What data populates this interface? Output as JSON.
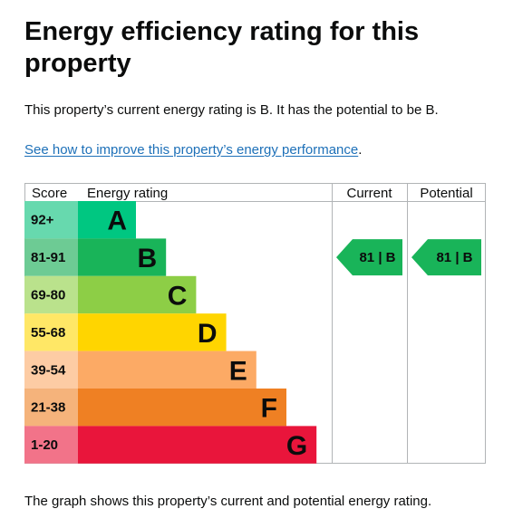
{
  "heading": "Energy efficiency rating for this property",
  "summary": "This property’s current energy rating is B. It has the potential to be B.",
  "improve_link": {
    "text": "See how to improve this property’s energy performance",
    "suffix": "."
  },
  "footnote": "The graph shows this property’s current and potential energy rating.",
  "table": {
    "headers": {
      "score": "Score",
      "rating": "Energy rating",
      "current": "Current",
      "potential": "Potential"
    },
    "bands": [
      {
        "score": "92+",
        "letter": "A",
        "color": "#00c781",
        "score_bg": "#67d9ae"
      },
      {
        "score": "81-91",
        "letter": "B",
        "color": "#19b459",
        "score_bg": "#6dcb94"
      },
      {
        "score": "69-80",
        "letter": "C",
        "color": "#8dce46",
        "score_bg": "#bae28c"
      },
      {
        "score": "55-68",
        "letter": "D",
        "color": "#ffd500",
        "score_bg": "#ffe766"
      },
      {
        "score": "39-54",
        "letter": "E",
        "color": "#fcaa65",
        "score_bg": "#fdcca4"
      },
      {
        "score": "21-38",
        "letter": "F",
        "color": "#ef8023",
        "score_bg": "#f5b37b"
      },
      {
        "score": "1-20",
        "letter": "G",
        "color": "#e9153b",
        "score_bg": "#f27389"
      }
    ],
    "current": {
      "label": "81 | B",
      "band": "B",
      "color": "#19b459"
    },
    "potential": {
      "label": "81 | B",
      "band": "B",
      "color": "#19b459"
    }
  }
}
